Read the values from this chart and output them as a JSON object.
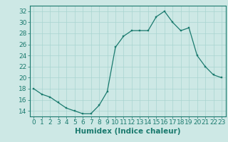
{
  "x": [
    0,
    1,
    2,
    3,
    4,
    5,
    6,
    7,
    8,
    9,
    10,
    11,
    12,
    13,
    14,
    15,
    16,
    17,
    18,
    19,
    20,
    21,
    22,
    23
  ],
  "y": [
    18,
    17,
    16.5,
    15.5,
    14.5,
    14,
    13.5,
    13.5,
    15,
    17.5,
    25.5,
    27.5,
    28.5,
    28.5,
    28.5,
    31,
    32,
    30,
    28.5,
    29,
    24,
    22,
    20.5,
    20
  ],
  "line_color": "#1a7a6e",
  "marker_color": "#1a7a6e",
  "bg_color": "#cde8e5",
  "grid_color": "#a8d4d0",
  "xlabel": "Humidex (Indice chaleur)",
  "ylim": [
    13,
    33
  ],
  "xlim": [
    -0.5,
    23.5
  ],
  "yticks": [
    14,
    16,
    18,
    20,
    22,
    24,
    26,
    28,
    30,
    32
  ],
  "xticks": [
    0,
    1,
    2,
    3,
    4,
    5,
    6,
    7,
    8,
    9,
    10,
    11,
    12,
    13,
    14,
    15,
    16,
    17,
    18,
    19,
    20,
    21,
    22,
    23
  ],
  "xlabel_fontsize": 7.5,
  "tick_fontsize": 6.5
}
